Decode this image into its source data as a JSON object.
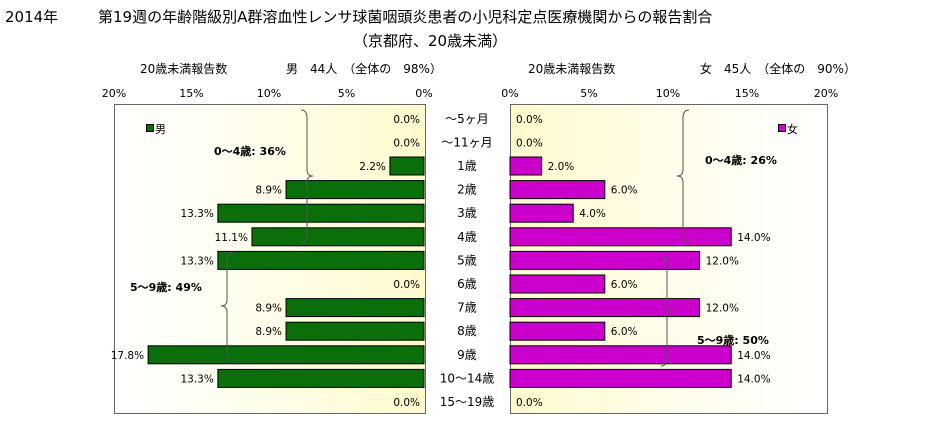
{
  "title": {
    "year": "2014年",
    "main": "第19週の年齢階級別A群溶血性レンサ球菌咽頭炎患者の小児科定点医療機関からの報告割合",
    "sub": "（京都府、20歳未満）"
  },
  "panels": {
    "male": {
      "count_label": "20歳未満報告数",
      "summary": "男　44人　（全体の　98%）",
      "legend": "男",
      "color": "#0a6e0a"
    },
    "female": {
      "count_label": "20歳未満報告数",
      "summary": "女　45人　（全体の　90%）",
      "legend": "女",
      "color": "#cc00cc"
    }
  },
  "chart_data": {
    "type": "bar",
    "orientation": "horizontal-population-pyramid",
    "categories": [
      "～5ヶ月",
      "～11ヶ月",
      "1歳",
      "2歳",
      "3歳",
      "4歳",
      "5歳",
      "6歳",
      "7歳",
      "8歳",
      "9歳",
      "10～14歳",
      "15～19歳"
    ],
    "series": [
      {
        "name": "男",
        "values": [
          0.0,
          0.0,
          2.2,
          8.9,
          13.3,
          11.1,
          13.3,
          0.0,
          8.9,
          8.9,
          17.8,
          13.3,
          0.0
        ],
        "labels": [
          "0.0%",
          "0.0%",
          "2.2%",
          "8.9%",
          "13.3%",
          "11.1%",
          "13.3%",
          "0.0%",
          "8.9%",
          "8.9%",
          "17.8%",
          "13.3%",
          "0.0%"
        ]
      },
      {
        "name": "女",
        "values": [
          0.0,
          0.0,
          2.0,
          6.0,
          4.0,
          14.0,
          12.0,
          6.0,
          12.0,
          6.0,
          14.0,
          14.0,
          0.0
        ],
        "labels": [
          "0.0%",
          "0.0%",
          "2.0%",
          "6.0%",
          "4.0%",
          "14.0%",
          "12.0%",
          "6.0%",
          "12.0%",
          "6.0%",
          "14.0%",
          "14.0%",
          "0.0%"
        ]
      }
    ],
    "xlim": [
      0,
      20
    ],
    "ticks_left": [
      "20%",
      "15%",
      "10%",
      "5%",
      "0%"
    ],
    "ticks_right": [
      "0%",
      "5%",
      "10%",
      "15%",
      "20%"
    ],
    "annotations": {
      "male_0_4": "0～4歳: 36%",
      "male_5_9": "5～9歳: 49%",
      "female_0_4": "0～4歳: 26%",
      "female_5_9": "5～9歳: 50%"
    },
    "grid": false
  }
}
